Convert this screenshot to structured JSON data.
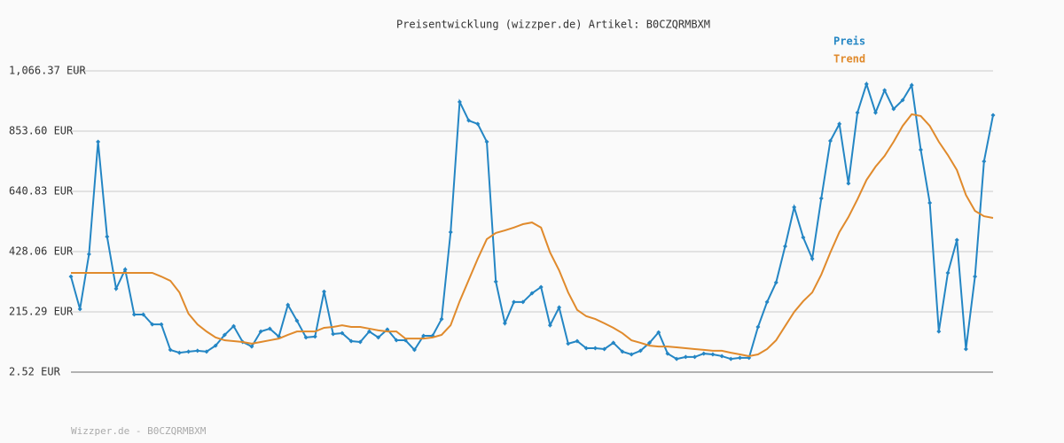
{
  "chart_data": {
    "type": "line",
    "title": "Preisentwicklung (wizzper.de) Artikel: B0CZQRMBXM",
    "footer": "Wizzper.de - B0CZQRMBXM",
    "legend": "top-right",
    "grid": true,
    "markers": "diamond",
    "ylim": [
      2.52,
      1066.37
    ],
    "yticks": [
      {
        "value": 2.52,
        "label": "2.52 EUR"
      },
      {
        "value": 215.29,
        "label": "215.29 EUR"
      },
      {
        "value": 428.06,
        "label": "428.06 EUR"
      },
      {
        "value": 640.83,
        "label": "640.83 EUR"
      },
      {
        "value": 853.6,
        "label": "853.60 EUR"
      },
      {
        "value": 1066.37,
        "label": "1,066.37 EUR"
      }
    ],
    "series": [
      {
        "name": "Preis",
        "color": "#2486c4",
        "values": [
          340,
          225,
          419,
          816,
          481,
          297,
          365,
          206,
          206,
          171,
          171,
          81,
          71,
          75,
          78,
          75,
          96,
          134,
          165,
          109,
          93,
          146,
          156,
          128,
          240,
          184,
          125,
          128,
          287,
          137,
          140,
          112,
          109,
          146,
          125,
          153,
          115,
          115,
          81,
          131,
          131,
          190,
          497,
          957,
          891,
          879,
          816,
          322,
          175,
          250,
          250,
          281,
          303,
          168,
          231,
          103,
          112,
          87,
          87,
          84,
          106,
          75,
          65,
          78,
          106,
          143,
          68,
          49,
          56,
          56,
          68,
          65,
          59,
          49,
          53,
          53,
          162,
          250,
          319,
          447,
          585,
          478,
          403,
          616,
          819,
          879,
          669,
          919,
          1020,
          919,
          998,
          932,
          963,
          1016,
          788,
          600,
          146,
          353,
          469,
          84,
          340,
          747,
          910
        ]
      },
      {
        "name": "Trend",
        "color": "#e08a2c",
        "values": [
          353,
          353,
          353,
          353,
          353,
          353,
          353,
          353,
          353,
          353,
          340,
          325,
          284,
          209,
          171,
          146,
          125,
          115,
          112,
          109,
          103,
          109,
          115,
          121,
          134,
          146,
          146,
          146,
          159,
          162,
          168,
          162,
          162,
          156,
          150,
          146,
          146,
          121,
          121,
          121,
          125,
          134,
          168,
          253,
          328,
          403,
          472,
          494,
          503,
          513,
          525,
          531,
          513,
          425,
          362,
          284,
          222,
          200,
          190,
          175,
          159,
          140,
          115,
          106,
          96,
          93,
          93,
          90,
          87,
          84,
          81,
          78,
          78,
          71,
          65,
          59,
          65,
          84,
          115,
          165,
          215,
          253,
          284,
          347,
          425,
          497,
          550,
          613,
          681,
          728,
          766,
          816,
          872,
          913,
          907,
          872,
          816,
          769,
          716,
          628,
          572,
          553,
          547
        ]
      }
    ]
  }
}
